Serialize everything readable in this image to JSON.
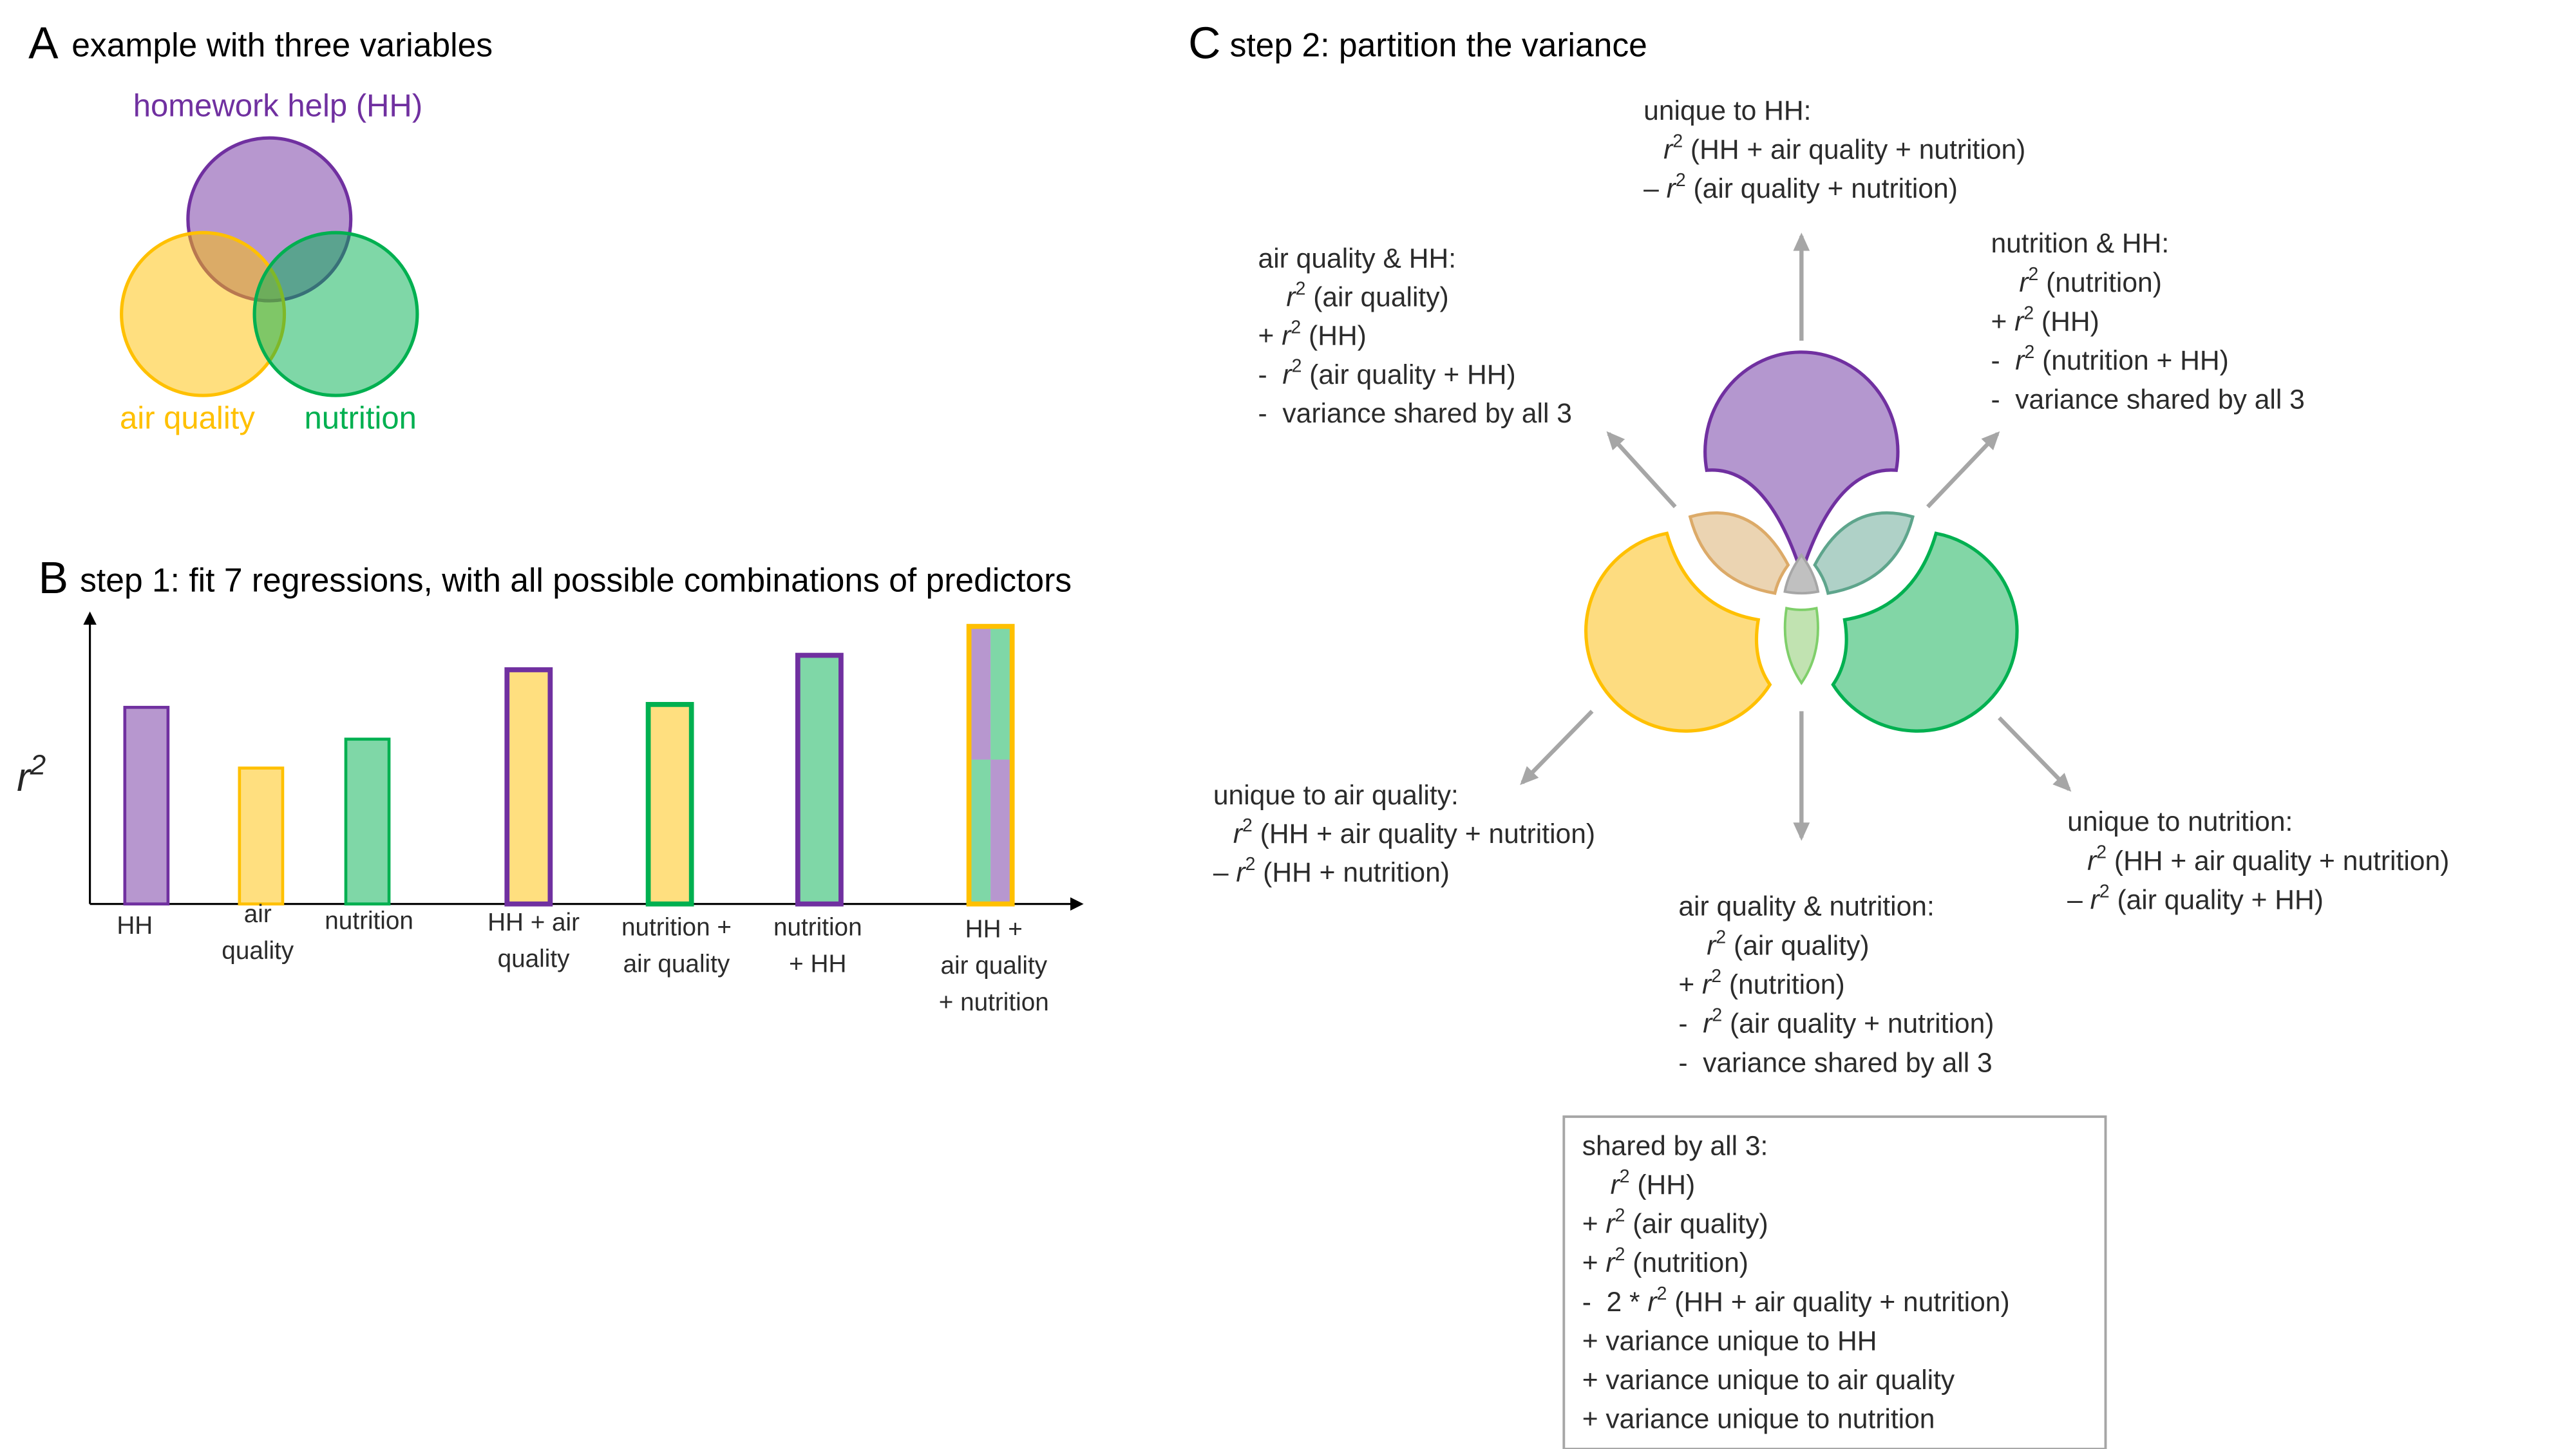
{
  "colors": {
    "hh": "#7030a0",
    "air_quality": "#ffc000",
    "nutrition": "#00b050",
    "arrow": "#a6a6a6",
    "shared_all": "#a6a6a6"
  },
  "r_symbol": "r",
  "r_exp": "2",
  "panel_a": {
    "letter": "A",
    "title": "example with three variables",
    "labels": {
      "hh": "homework help (HH)",
      "air_quality": "air quality",
      "nutrition": "nutrition"
    }
  },
  "panel_b": {
    "letter": "B",
    "title": "step 1: fit 7 regressions, with all possible combinations of predictors"
  },
  "chart_data": {
    "type": "bar",
    "ylabel": "r²",
    "xlabel": "",
    "ylim": [
      0,
      1
    ],
    "grid": false,
    "categories": [
      [
        "HH"
      ],
      [
        "air",
        "quality"
      ],
      [
        "nutrition"
      ],
      [
        "HH + air",
        "quality"
      ],
      [
        "nutrition +",
        "air quality"
      ],
      [
        "nutrition",
        "+ HH"
      ],
      [
        "HH +",
        "air quality",
        "+ nutrition"
      ]
    ],
    "values": [
      0.68,
      0.47,
      0.57,
      0.81,
      0.69,
      0.86,
      0.96
    ],
    "bar_styles": [
      {
        "fill": [
          "#7030a0"
        ],
        "outline": "#7030a0"
      },
      {
        "fill": [
          "#ffc000"
        ],
        "outline": "#ffc000"
      },
      {
        "fill": [
          "#00b050"
        ],
        "outline": "#00b050"
      },
      {
        "fill": [
          "#ffc000"
        ],
        "outline": "#7030a0"
      },
      {
        "fill": [
          "#ffc000"
        ],
        "outline": "#00b050"
      },
      {
        "fill": [
          "#00b050"
        ],
        "outline": "#7030a0"
      },
      {
        "fill": [
          "#7030a0",
          "#00b050"
        ],
        "outline": "#ffc000"
      }
    ]
  },
  "panel_c": {
    "letter": "C",
    "title": "step 2: partition the variance",
    "blocks": {
      "unique_hh": [
        {
          "text": "unique to HH:"
        },
        {
          "lead": "",
          "r2": true,
          "text": " (HH + air quality + nutrition)"
        },
        {
          "lead": "– ",
          "r2": true,
          "text": " (air quality + nutrition)"
        }
      ],
      "air_hh": [
        {
          "text": "air quality & HH:"
        },
        {
          "lead": "",
          "r2": true,
          "text": " (air quality)"
        },
        {
          "lead": "+ ",
          "r2": true,
          "text": " (HH)"
        },
        {
          "lead": "-  ",
          "r2": true,
          "text": " (air quality + HH)"
        },
        {
          "lead": "-  ",
          "text": "variance shared by all 3"
        }
      ],
      "nutrition_hh": [
        {
          "text": "nutrition & HH:"
        },
        {
          "lead": "",
          "r2": true,
          "text": " (nutrition)"
        },
        {
          "lead": "+ ",
          "r2": true,
          "text": " (HH)"
        },
        {
          "lead": "-  ",
          "r2": true,
          "text": " (nutrition + HH)"
        },
        {
          "lead": "-  ",
          "text": "variance shared by all 3"
        }
      ],
      "unique_air": [
        {
          "text": "unique to air quality:"
        },
        {
          "lead": "",
          "r2": true,
          "text": " (HH + air quality + nutrition)"
        },
        {
          "lead": "– ",
          "r2": true,
          "text": " (HH + nutrition)"
        }
      ],
      "unique_nutrition": [
        {
          "text": "unique to nutrition:"
        },
        {
          "lead": "",
          "r2": true,
          "text": " (HH + air quality + nutrition)"
        },
        {
          "lead": "– ",
          "r2": true,
          "text": " (air quality + HH)"
        }
      ],
      "air_nutrition": [
        {
          "text": "air quality & nutrition:"
        },
        {
          "lead": "",
          "r2": true,
          "text": " (air quality)"
        },
        {
          "lead": "+ ",
          "r2": true,
          "text": " (nutrition)"
        },
        {
          "lead": "-  ",
          "r2": true,
          "text": " (air quality + nutrition)"
        },
        {
          "lead": "-  ",
          "text": "variance shared by all 3"
        }
      ],
      "shared_all": [
        {
          "text": "shared by all 3:"
        },
        {
          "lead": "",
          "r2": true,
          "text": " (HH)"
        },
        {
          "lead": "+ ",
          "r2": true,
          "text": " (air quality)"
        },
        {
          "lead": "+ ",
          "r2": true,
          "text": " (nutrition)"
        },
        {
          "lead": "-  2 * ",
          "r2": true,
          "text": " (HH + air quality + nutrition)"
        },
        {
          "lead": "+ ",
          "text": "variance unique to HH"
        },
        {
          "lead": "+ ",
          "text": "variance unique to air quality"
        },
        {
          "lead": "+ ",
          "text": "variance unique to nutrition"
        }
      ]
    }
  }
}
